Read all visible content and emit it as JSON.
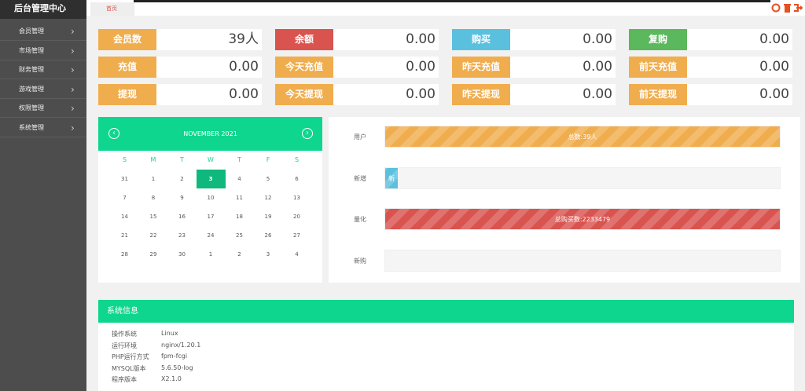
{
  "header": {
    "title": "后台管理中心",
    "tab": "首页"
  },
  "sidebar": {
    "items": [
      "会员管理",
      "市场管理",
      "财务管理",
      "游戏管理",
      "权限管理",
      "系统管理"
    ]
  },
  "stats": [
    {
      "label": "会员数",
      "value": "39人",
      "color": "#f0ad4e"
    },
    {
      "label": "余额",
      "value": "0.00",
      "color": "#d9534f"
    },
    {
      "label": "购买",
      "value": "0.00",
      "color": "#5bc0de"
    },
    {
      "label": "复购",
      "value": "0.00",
      "color": "#5cb85c"
    },
    {
      "label": "充值",
      "value": "0.00",
      "color": "#f0ad4e"
    },
    {
      "label": "今天充值",
      "value": "0.00",
      "color": "#f0ad4e"
    },
    {
      "label": "昨天充值",
      "value": "0.00",
      "color": "#f0ad4e"
    },
    {
      "label": "前天充值",
      "value": "0.00",
      "color": "#f0ad4e"
    },
    {
      "label": "提现",
      "value": "0.00",
      "color": "#f0ad4e"
    },
    {
      "label": "今天提现",
      "value": "0.00",
      "color": "#f0ad4e"
    },
    {
      "label": "昨天提现",
      "value": "0.00",
      "color": "#f0ad4e"
    },
    {
      "label": "前天提现",
      "value": "0.00",
      "color": "#f0ad4e"
    }
  ],
  "calendar": {
    "month": "NOVEMBER 2021",
    "weekdays": [
      "S",
      "M",
      "T",
      "W",
      "T",
      "F",
      "S"
    ],
    "weeks": [
      [
        31,
        1,
        2,
        3,
        4,
        5,
        6
      ],
      [
        7,
        8,
        9,
        10,
        11,
        12,
        13
      ],
      [
        14,
        15,
        16,
        17,
        18,
        19,
        20
      ],
      [
        21,
        22,
        23,
        24,
        25,
        26,
        27
      ],
      [
        28,
        29,
        30,
        1,
        2,
        3,
        4
      ]
    ]
  },
  "progress": [
    {
      "label": "用户",
      "text": "总数:39人",
      "color": "#f0ad4e"
    },
    {
      "label": "新增",
      "text": "新",
      "color": "#5bc0de"
    },
    {
      "label": "量化",
      "text": "总购买数:2233479",
      "color": "#d9534f"
    },
    {
      "label": "新购"
    }
  ],
  "system_info": {
    "title": "系统信息",
    "rows": [
      [
        "操作系统",
        "Linux"
      ],
      [
        "运行环境",
        "nginx/1.20.1"
      ],
      [
        "PHP运行方式",
        "fpm-fcgi"
      ],
      [
        "MYSQL版本",
        "5.6.50-log"
      ],
      [
        "程序版本",
        "X2.1.0"
      ]
    ]
  }
}
